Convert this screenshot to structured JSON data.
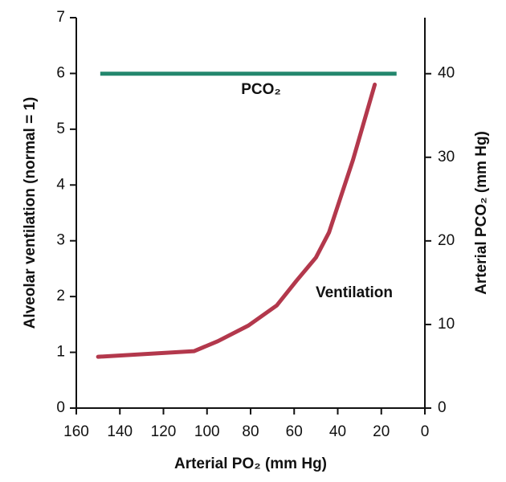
{
  "chart_data": {
    "type": "line",
    "x_label": "Arterial PO₂ (mm Hg)",
    "y_label": "Alveolar ventilation (normal = 1)",
    "y2_label": "Arterial PCO₂ (mm Hg)",
    "xlim": [
      160,
      0
    ],
    "xticks": [
      160,
      140,
      120,
      100,
      80,
      60,
      40,
      20,
      0
    ],
    "ylim": [
      0,
      7
    ],
    "yticks": [
      0,
      1,
      2,
      3,
      4,
      5,
      6,
      7
    ],
    "y2lim": [
      0,
      46.7
    ],
    "y2ticks": [
      0,
      10,
      20,
      30,
      40
    ],
    "series": [
      {
        "name": "PCO₂",
        "color": "#23876d",
        "axis": "y2",
        "x": [
          149,
          13
        ],
        "values": [
          40,
          40
        ]
      },
      {
        "name": "Ventilation",
        "color": "#b3384c",
        "x": [
          150,
          106,
          95,
          81,
          68,
          59,
          50,
          44,
          33,
          23
        ],
        "values": [
          0.92,
          1.02,
          1.2,
          1.48,
          1.84,
          2.28,
          2.7,
          3.15,
          4.45,
          5.8
        ]
      }
    ]
  }
}
